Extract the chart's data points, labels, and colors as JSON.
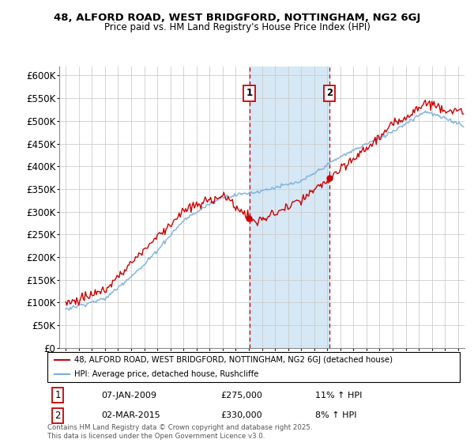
{
  "title1": "48, ALFORD ROAD, WEST BRIDGFORD, NOTTINGHAM, NG2 6GJ",
  "title2": "Price paid vs. HM Land Registry's House Price Index (HPI)",
  "legend_line1": "48, ALFORD ROAD, WEST BRIDGFORD, NOTTINGHAM, NG2 6GJ (detached house)",
  "legend_line2": "HPI: Average price, detached house, Rushcliffe",
  "transaction1_date": "07-JAN-2009",
  "transaction1_price": "£275,000",
  "transaction1_hpi": "11% ↑ HPI",
  "transaction2_date": "02-MAR-2015",
  "transaction2_price": "£330,000",
  "transaction2_hpi": "8% ↑ HPI",
  "footnote": "Contains HM Land Registry data © Crown copyright and database right 2025.\nThis data is licensed under the Open Government Licence v3.0.",
  "red_color": "#cc0000",
  "blue_color": "#7aaedb",
  "shade_color": "#d6e8f5",
  "marker1_x": 2009.04,
  "marker2_x": 2015.17,
  "ylim_max": 620000,
  "ylim_min": 0,
  "xlim_min": 1994.5,
  "xlim_max": 2025.5
}
